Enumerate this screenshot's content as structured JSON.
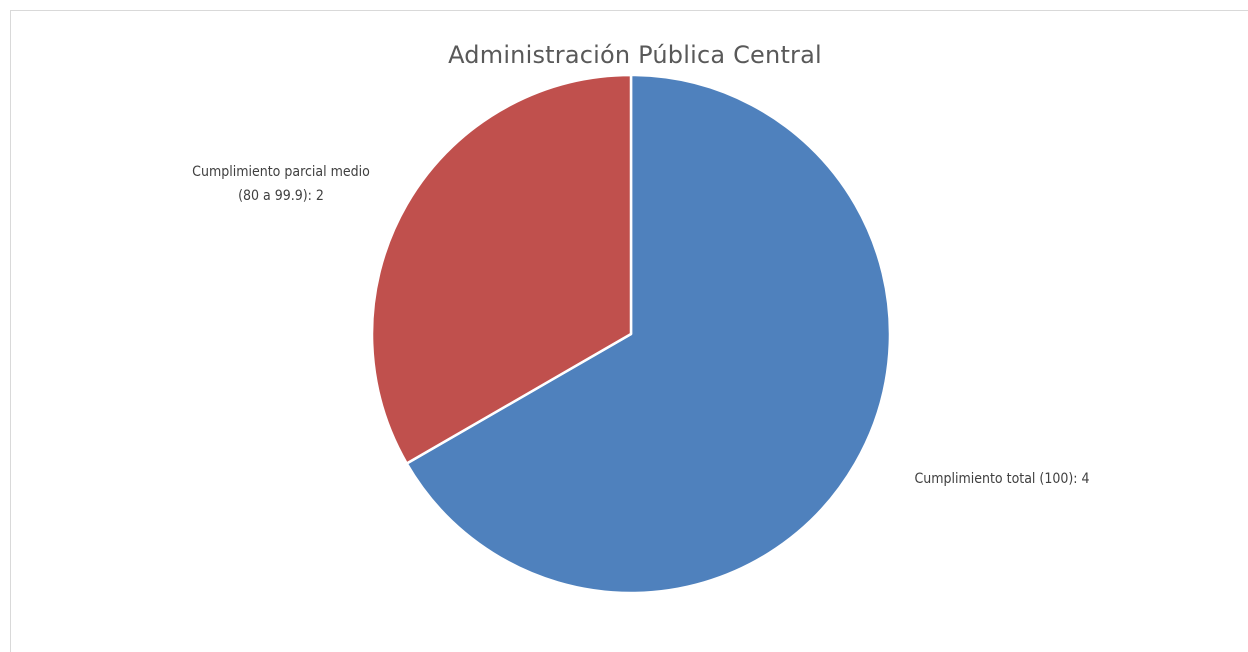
{
  "chart_data": {
    "type": "pie",
    "title": "Administración Pública Central",
    "slices": [
      {
        "label_line1": "Cumplimiento total (100): 4",
        "label_line2": "",
        "value": 4,
        "color": "#4f81bd"
      },
      {
        "label_line1": "Cumplimiento parcial medio",
        "label_line2": "(80 a 99.9): 2",
        "value": 2,
        "color": "#c0504d"
      }
    ],
    "start_angle_deg": 0,
    "direction": "clockwise",
    "legend": "none"
  }
}
